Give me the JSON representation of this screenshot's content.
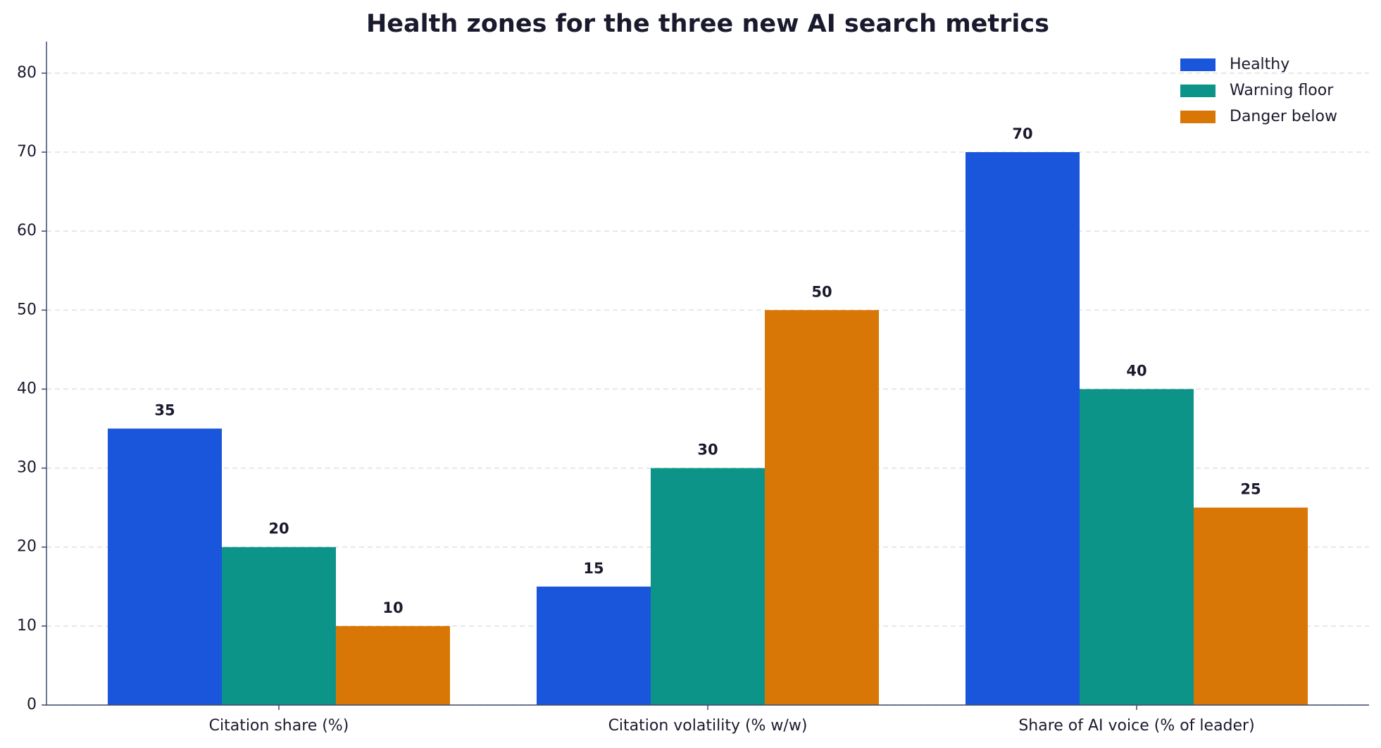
{
  "chart_data": {
    "type": "bar",
    "title": "Health zones for the three new AI search metrics",
    "categories": [
      "Citation share (%)",
      "Citation volatility (% w/w)",
      "Share of AI voice (% of leader)"
    ],
    "series": [
      {
        "name": "Healthy",
        "color": "#1a56db",
        "values": [
          35,
          15,
          70
        ]
      },
      {
        "name": "Warning floor",
        "color": "#0d9488",
        "values": [
          20,
          30,
          40
        ]
      },
      {
        "name": "Danger below",
        "color": "#d97706",
        "values": [
          10,
          50,
          25
        ]
      }
    ],
    "ylim": [
      0,
      84
    ],
    "yticks": [
      0,
      10,
      20,
      30,
      40,
      50,
      60,
      70,
      80
    ],
    "grid": true,
    "legend": "upper right"
  }
}
